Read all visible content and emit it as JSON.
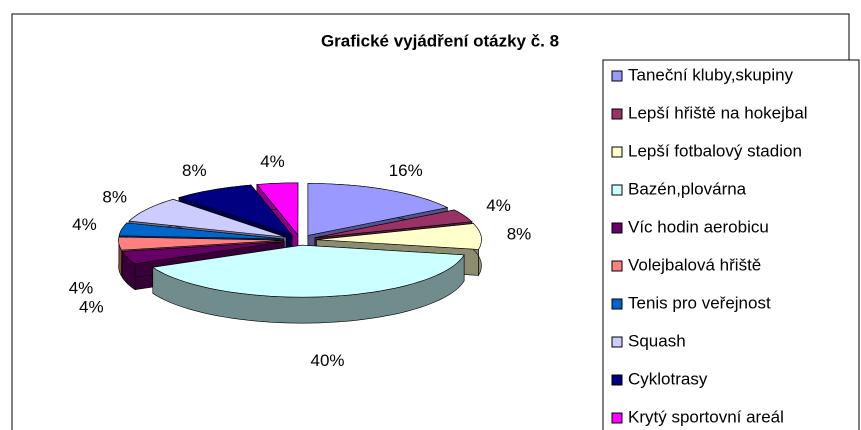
{
  "chart_data": {
    "type": "pie",
    "title": "Grafické vyjádření otázky č. 8",
    "categories": [
      "Taneční kluby,skupiny",
      "Lepší hřiště na hokejbal",
      "Lepší fotbalový stadion",
      "Bazén,plovárna",
      "Víc hodin aerobicu",
      "Volejbalová hřiště",
      "Tenis pro veřejnost",
      "Squash",
      "Cyklotrasy",
      "Krytý sportovní areál"
    ],
    "values": [
      16,
      4,
      8,
      40,
      4,
      4,
      4,
      8,
      8,
      4
    ],
    "value_labels": [
      "16%",
      "4%",
      "8%",
      "40%",
      "4%",
      "4%",
      "4%",
      "8%",
      "8%",
      "4%"
    ],
    "colors": [
      "#9999ff",
      "#993366",
      "#ffffcc",
      "#ccffff",
      "#660066",
      "#ff8080",
      "#0066cc",
      "#ccccff",
      "#000080",
      "#ff00ff"
    ],
    "legend": "right"
  }
}
